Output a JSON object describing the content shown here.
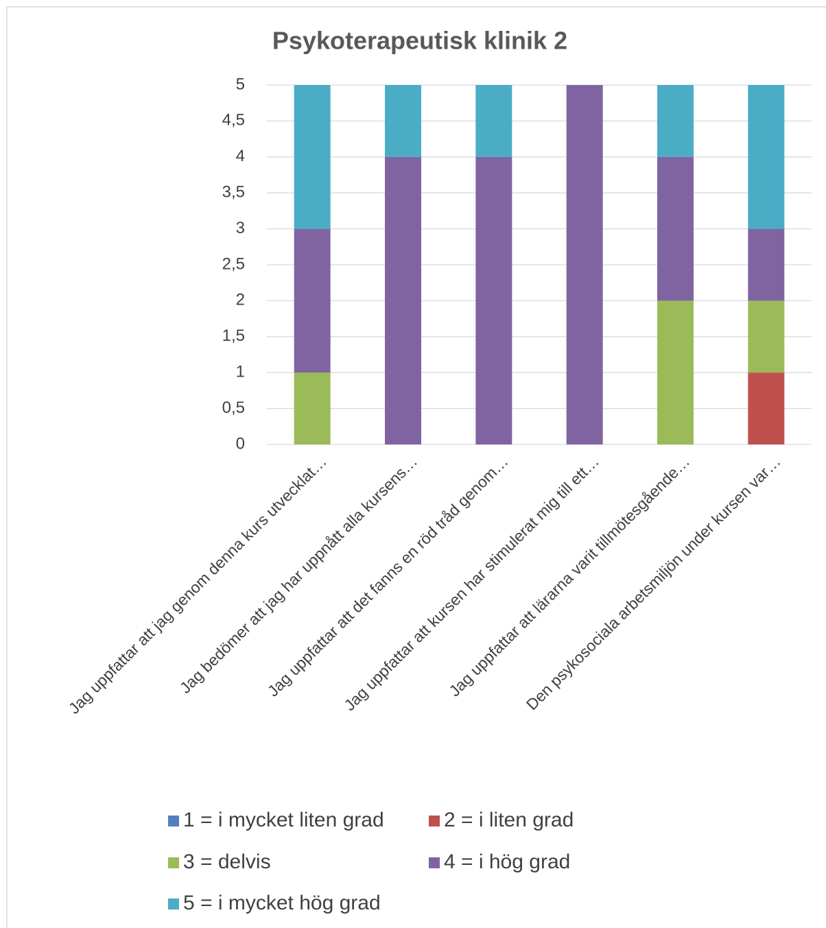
{
  "chart_data": {
    "type": "stacked_bar",
    "title": "Psykoterapeutisk klinik 2",
    "categories": [
      "Jag uppfattar att jag genom denna kurs utvecklat…",
      "Jag bedömer att jag har uppnått alla kursens…",
      "Jag uppfattar att det fanns en röd tråd genom…",
      "Jag uppfattar att kursen har stimulerat mig till ett…",
      "Jag uppfattar att lärarna varit tillmötesgående…",
      "Den psykosociala arbetsmiljön under kursen var…"
    ],
    "series": [
      {
        "name": "1 = i mycket liten grad",
        "color": "#4f81bd",
        "values": [
          0,
          0,
          0,
          0,
          0,
          0
        ]
      },
      {
        "name": "2 = i liten grad",
        "color": "#c0504d",
        "values": [
          0,
          0,
          0,
          0,
          0,
          1
        ]
      },
      {
        "name": "3 = delvis",
        "color": "#9bbb59",
        "values": [
          1,
          0,
          0,
          0,
          2,
          1
        ]
      },
      {
        "name": "4 = i hög grad",
        "color": "#8064a2",
        "values": [
          2,
          4,
          4,
          5,
          2,
          1
        ]
      },
      {
        "name": "5 = i mycket hög grad",
        "color": "#4bacc6",
        "values": [
          2,
          1,
          1,
          0,
          1,
          2
        ]
      }
    ],
    "ylim": [
      0,
      5
    ],
    "yticks": [
      0,
      {
        "value": 0.5,
        "label": "0,5"
      },
      1,
      {
        "value": 1.5,
        "label": "1,5"
      },
      2,
      {
        "value": 2.5,
        "label": "2,5"
      },
      3,
      {
        "value": 3.5,
        "label": "3,5"
      },
      4,
      {
        "value": 4.5,
        "label": "4,5"
      },
      5
    ],
    "grid": true,
    "legend": "bottom"
  }
}
